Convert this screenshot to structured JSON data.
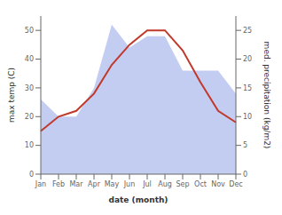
{
  "chart_data": {
    "type": "line",
    "categories": [
      "Jan",
      "Feb",
      "Mar",
      "Apr",
      "May",
      "Jun",
      "Jul",
      "Aug",
      "Sep",
      "Oct",
      "Nov",
      "Dec"
    ],
    "xlabel": "date (month)",
    "ylabel": "max temp (C)",
    "y2label": "med. precipitation (kg/m2)",
    "series": [
      {
        "type": "area",
        "axis": "y2",
        "color": "#b8c4ee",
        "values": [
          13,
          10,
          10,
          15,
          26,
          22,
          24,
          24,
          18,
          18,
          18,
          14
        ]
      },
      {
        "type": "line",
        "color": "#c0392b",
        "values": [
          15,
          20,
          22,
          28,
          38,
          45,
          50,
          50,
          43,
          32,
          22,
          18
        ]
      }
    ],
    "ylim": [
      0,
      55
    ],
    "yticks": [
      0,
      10,
      20,
      30,
      40,
      50
    ],
    "y2lim": [
      0,
      27.5
    ],
    "y2ticks": [
      0,
      5,
      10,
      15,
      20,
      25
    ],
    "grid": false
  }
}
